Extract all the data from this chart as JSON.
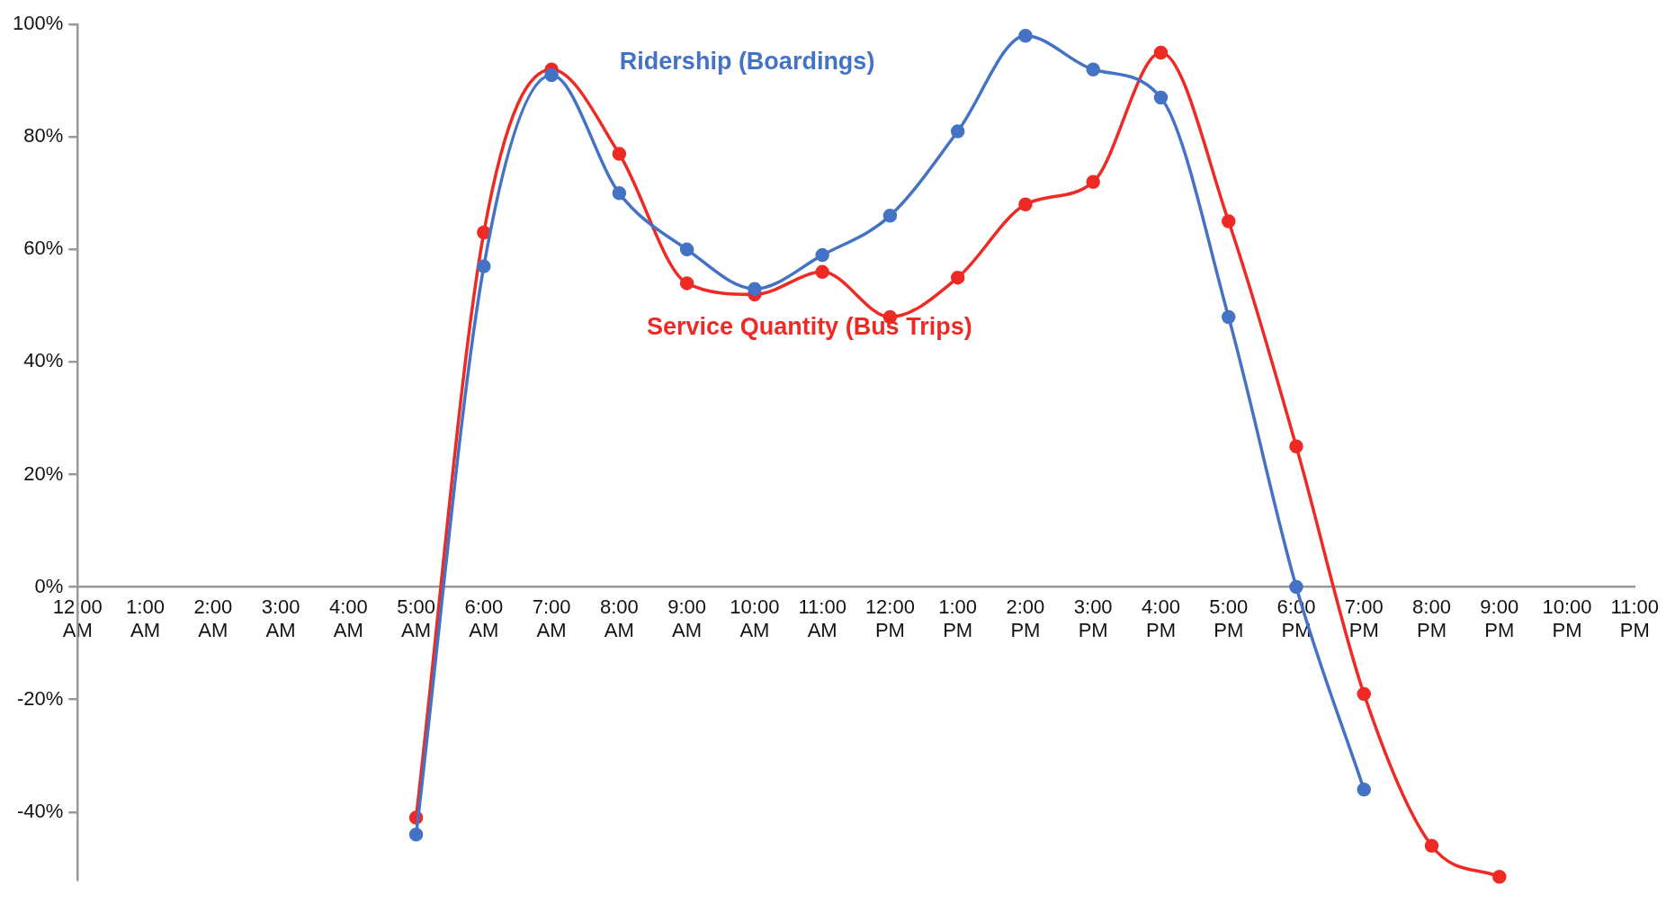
{
  "chart_data": {
    "type": "line",
    "categories": [
      "12:00 AM",
      "1:00 AM",
      "2:00 AM",
      "3:00 AM",
      "4:00 AM",
      "5:00 AM",
      "6:00 AM",
      "7:00 AM",
      "8:00 AM",
      "9:00 AM",
      "10:00 AM",
      "11:00 AM",
      "12:00 PM",
      "1:00 PM",
      "2:00 PM",
      "3:00 PM",
      "4:00 PM",
      "5:00 PM",
      "6:00 PM",
      "7:00 PM",
      "8:00 PM",
      "9:00 PM",
      "10:00 PM",
      "11:00 PM"
    ],
    "series": [
      {
        "name": "Ridership (Boardings)",
        "color": "#4472c4",
        "values": [
          null,
          null,
          null,
          null,
          null,
          -44,
          57,
          91,
          70,
          60,
          53,
          59,
          66,
          81,
          98,
          92,
          87,
          48,
          0,
          -36,
          null,
          null,
          null,
          null
        ]
      },
      {
        "name": "Service Quantity (Bus Trips)",
        "color": "#ee2a24",
        "values": [
          null,
          null,
          null,
          null,
          null,
          -41,
          63,
          92,
          77,
          54,
          52,
          56,
          48,
          55,
          68,
          72,
          95,
          65,
          25,
          -19,
          -46,
          -51.5,
          null,
          null
        ]
      }
    ],
    "ylim": [
      -52,
      100
    ],
    "yticks": [
      {
        "value": -40,
        "label": "-40%"
      },
      {
        "value": -20,
        "label": "-20%"
      },
      {
        "value": 0,
        "label": "0%"
      },
      {
        "value": 20,
        "label": "20%"
      },
      {
        "value": 40,
        "label": "40%"
      },
      {
        "value": 60,
        "label": "60%"
      },
      {
        "value": 80,
        "label": "80%"
      },
      {
        "value": 100,
        "label": "100%"
      }
    ],
    "grid": false,
    "legend": false,
    "marker": "circle",
    "line_style": "solid"
  }
}
